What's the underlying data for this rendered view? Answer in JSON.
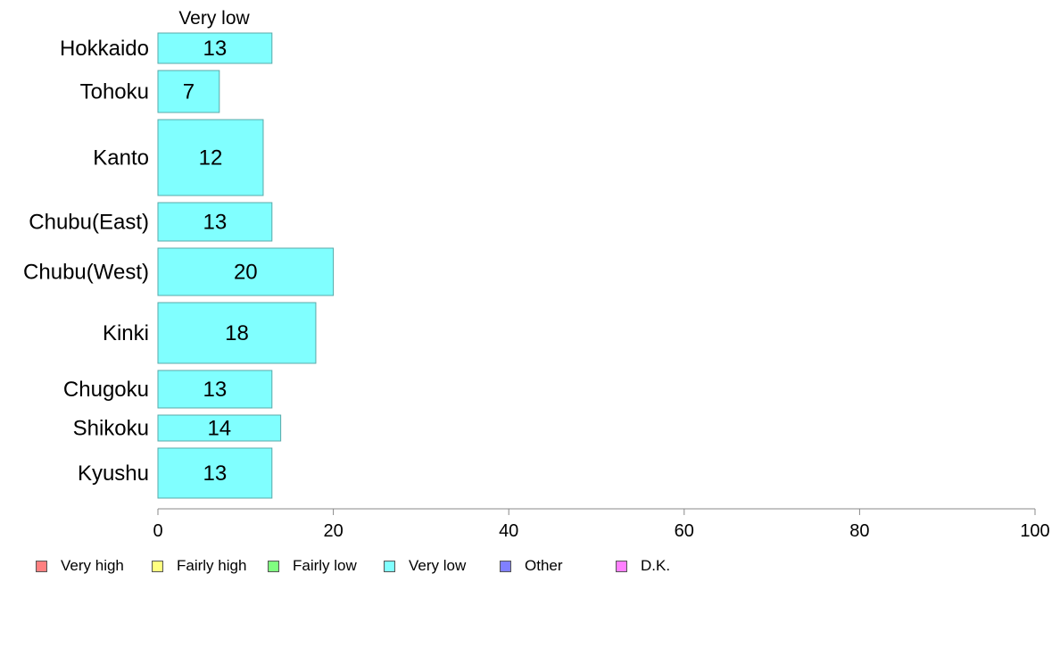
{
  "chart_data": {
    "type": "bar",
    "orientation": "horizontal",
    "series": [
      {
        "name": "Very low",
        "values": [
          13,
          7,
          12,
          13,
          20,
          18,
          13,
          14,
          13
        ]
      }
    ],
    "categories": [
      "Hokkaido",
      "Tohoku",
      "Kanto",
      "Chubu(East)",
      "Chubu(West)",
      "Kinki",
      "Chugoku",
      "Shikoku",
      "Kyushu"
    ],
    "column_header": "Very low",
    "xlim": [
      0,
      100
    ],
    "xticks": [
      0,
      20,
      40,
      60,
      80,
      100
    ],
    "grid": false,
    "legend_position": "bottom",
    "legend": [
      {
        "label": "Very high",
        "color": "#ff8080"
      },
      {
        "label": "Fairly high",
        "color": "#ffff80"
      },
      {
        "label": "Fairly low",
        "color": "#80ff80"
      },
      {
        "label": "Very low",
        "color": "#80ffff"
      },
      {
        "label": "Other",
        "color": "#8080ff"
      },
      {
        "label": "D.K.",
        "color": "#ff80ff"
      }
    ],
    "bar_color": "#80ffff"
  }
}
